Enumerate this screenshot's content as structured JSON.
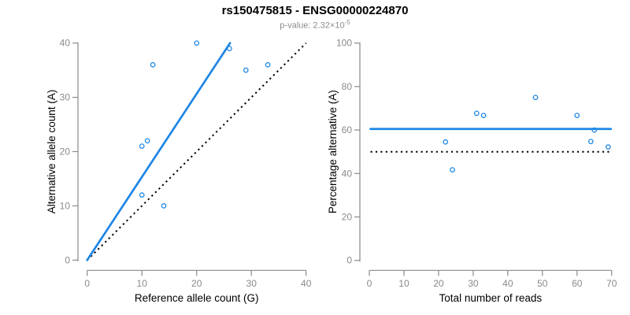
{
  "header": {
    "title": "rs150475815 - ENSG00000224870",
    "subtitle_prefix": "p-value: 2.32×10",
    "subtitle_exponent": "-5"
  },
  "colors": {
    "accent_blue": "#1e87e4",
    "axis_gray": "#8a8a8a",
    "tick_label_gray": "#8a8a8a",
    "subtitle_gray": "#8c8c8c",
    "reference_black": "#000000",
    "text_black": "#000000",
    "background": "#ffffff"
  },
  "chart_data": [
    {
      "type": "scatter",
      "name": "allele-counts",
      "xlabel": "Reference allele count (G)",
      "ylabel": "Alternative allele count (A)",
      "xlim": [
        0,
        40
      ],
      "ylim": [
        0,
        40
      ],
      "xticks": [
        0,
        10,
        20,
        30,
        40
      ],
      "yticks": [
        0,
        10,
        20,
        30,
        40
      ],
      "grid": false,
      "points": [
        [
          10,
          12
        ],
        [
          10,
          21
        ],
        [
          11,
          22
        ],
        [
          12,
          36
        ],
        [
          14,
          10
        ],
        [
          20,
          40
        ],
        [
          26,
          39
        ],
        [
          29,
          35
        ],
        [
          33,
          36
        ]
      ],
      "fit_line": {
        "style": "solid",
        "from": [
          0,
          0
        ],
        "to": [
          26.1,
          40
        ]
      },
      "reference_line": {
        "style": "dotted",
        "from": [
          0,
          0
        ],
        "to": [
          40,
          40
        ]
      }
    },
    {
      "type": "scatter",
      "name": "percentage-vs-reads",
      "xlabel": "Total number of reads",
      "ylabel": "Percentage alternative (A)",
      "xlim": [
        0,
        70
      ],
      "ylim": [
        0,
        100
      ],
      "xticks": [
        0,
        10,
        20,
        30,
        40,
        50,
        60,
        70
      ],
      "yticks": [
        0,
        20,
        40,
        60,
        80,
        100
      ],
      "grid": false,
      "points": [
        [
          22,
          54.5
        ],
        [
          24,
          41.7
        ],
        [
          31,
          67.7
        ],
        [
          33,
          66.7
        ],
        [
          48,
          75
        ],
        [
          60,
          66.7
        ],
        [
          64,
          54.7
        ],
        [
          65,
          60
        ],
        [
          69,
          52.2
        ]
      ],
      "fit_line": {
        "style": "solid",
        "y": 60.5
      },
      "reference_line": {
        "style": "dotted",
        "y": 50
      }
    }
  ]
}
